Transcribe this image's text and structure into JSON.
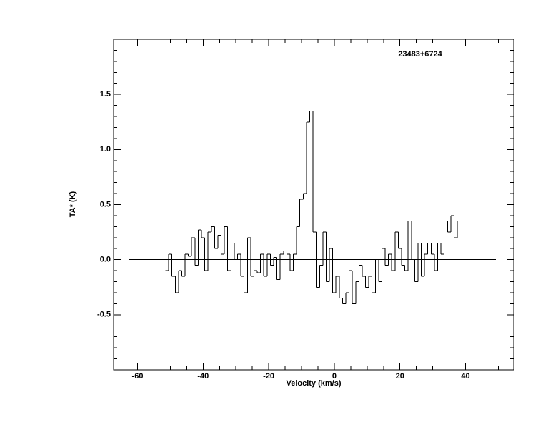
{
  "chart_data": {
    "type": "step",
    "annotation": "23483+6724",
    "xlabel": "Velocity (km/s)",
    "ylabel": "TA* (K)",
    "xlim": [
      -67.3,
      54.7
    ],
    "ylim": [
      -1.0,
      2.0
    ],
    "xticks": [
      -60,
      -40,
      -20,
      0,
      20,
      40
    ],
    "yticks": [
      -0.5,
      {
        "value": 0,
        "label": "0.0"
      },
      0.5,
      {
        "value": 1,
        "label": "1.0"
      },
      1.5
    ],
    "xminor": 5,
    "yminor": 0.1,
    "baseline": {
      "y": 0,
      "x": [
        -62.6,
        49.2
      ]
    },
    "color": "#000000",
    "x": [
      -51,
      -50,
      -49,
      -48,
      -47,
      -46,
      -45,
      -44,
      -43,
      -42,
      -41,
      -40,
      -39,
      -38,
      -37,
      -36,
      -35,
      -34,
      -33,
      -32,
      -31,
      -30,
      -29,
      -28,
      -27,
      -26,
      -25,
      -24,
      -23,
      -22,
      -21,
      -20,
      -19,
      -18,
      -17,
      -16,
      -15,
      -14,
      -13,
      -12,
      -11,
      -10,
      -9,
      -8,
      -7,
      -6,
      -5,
      -4,
      -3,
      -2,
      -1,
      0,
      1,
      2,
      3,
      4,
      5,
      6,
      7,
      8,
      9,
      10,
      11,
      12,
      13,
      14,
      15,
      16,
      17,
      18,
      19,
      20,
      21,
      22,
      23,
      24,
      25,
      26,
      27,
      28,
      29,
      30,
      31,
      32,
      33,
      34,
      35,
      36,
      37,
      38
    ],
    "values": [
      -0.1,
      0.05,
      -0.15,
      -0.3,
      -0.1,
      -0.15,
      0.05,
      0.03,
      0.2,
      -0.05,
      0.27,
      0.2,
      -0.1,
      0.25,
      0.3,
      0.1,
      0.22,
      0.05,
      0.3,
      -0.1,
      0.15,
      0.0,
      0.05,
      -0.15,
      -0.3,
      0.2,
      -0.15,
      -0.1,
      -0.12,
      0.05,
      -0.15,
      0.05,
      -0.05,
      0.02,
      -0.18,
      0.05,
      0.08,
      0.05,
      -0.1,
      0.05,
      0.3,
      0.55,
      0.6,
      1.25,
      1.35,
      0.25,
      -0.25,
      -0.05,
      0.25,
      -0.2,
      0.1,
      -0.3,
      -0.15,
      -0.35,
      -0.4,
      -0.3,
      -0.1,
      -0.4,
      -0.2,
      -0.05,
      -0.15,
      -0.25,
      -0.15,
      -0.3,
      0.0,
      -0.2,
      0.1,
      -0.05,
      0.05,
      -0.1,
      0.25,
      0.1,
      -0.05,
      -0.1,
      0.35,
      0.0,
      -0.2,
      0.15,
      -0.15,
      0.05,
      0.15,
      0.05,
      -0.1,
      0.15,
      0.05,
      0.35,
      0.25,
      0.4,
      0.2,
      0.35
    ]
  }
}
